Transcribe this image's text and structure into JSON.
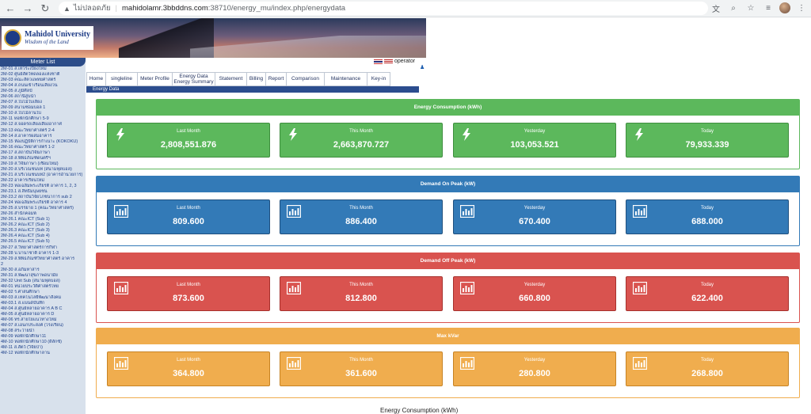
{
  "browser": {
    "insecure_label": "ไม่ปลอดภัย",
    "url_host": "mahidolamr.3bbddns.com",
    "url_path": ":38710/energy_mu/index.php/energydata"
  },
  "logo": {
    "line1": "Mahidol University",
    "line2": "Wisdom of the Land"
  },
  "user": {
    "name": "operator"
  },
  "sidebar": {
    "title": "Meter List",
    "items": [
      "2M-01 ส.เทวระเบียงใหม่",
      "2M-02 ศูนย์สัตว์ทดลองแห่งชาติ",
      "2M-03 คณะสัตวแพทยศาสตร์",
      "2M-04 ส.ถนนเข้าเรือนเลี้ยงวน",
      "2M-05 ส.ภูมิศิลป์",
      "2M-06 สถานีสูบน้ำ",
      "2M-07 ส.ใบไม้ใบเลี้ยง",
      "2M-09 สนามซ่อมบอล 1",
      "2M-10 ส.ใบไม้ลานใบ",
      "2M-11 หอพักนักศึกษา 5-9",
      "2M-12 ส.จอดรถเลี้ยงเสียงอากาศ",
      "2M-13 คณะวิทยาศาสตร์ 2-4",
      "2M-14 ส.อาคารผสมอาคาร",
      "2M-15 ห้องปฏิบัติการกำเนาะ (KOKOKU)",
      "2M-16 คณะวิทยาศาสตร์ 1-2",
      "2M-17 ส.สถาบันวิจัยภาษา",
      "2M-18 ส.พิพิธภัณฑ์ดนตรีฯ",
      "2M-19 ส.วิจัยภาษา (เชื่อมใหม่)",
      "2M-20 ส.บริเวณชนบท (สนามฟุตบอล)",
      "2M-21 ส.บริเวณชนบท2 (อาคารอำนวยการ)",
      "2M-22 อาคารเรียนใหม่",
      "2M-23 หอเฉลิมพระเกียรติ อาคาร 1, 2, 3",
      "2M-23.1 ส.สิทธิมนุษยชน",
      "2M-23.2 สถาบันวิจัยโภชนาการ sub 2",
      "2M-24 หอเฉลิมพระเกียรติ อาคาร 4",
      "2M-25 ส.บรรยาย 1 (คณะวิทยาศาสตร์)",
      "2M-26 สำนักคอมพ์",
      "2M-26.1 คณะICT (Sub 1)",
      "2M-26.2 คณะICT (Sub 2)",
      "2M-26.3 คณะICT (Sub 3)",
      "2M-26.4 คณะICT (Sub 4)",
      "2M-26.5 คณะICT (Sub 5)",
      "2M-27 ส.วิทยาศาสตร์การกีฬา",
      "2M-28 บ.บานาชาติ อาคาร 1-3",
      "2M-29 ส.พิพิธภัณฑ์วิทยาศาสตร์ อาคาร",
      "2",
      "2M-30 ส.อภิมหาสาร",
      "2M-31 ส.พัฒนาสุขภาพอนามัย",
      "2M-32 Unit Sub (สนามฟุตบอล)",
      "4M-01 หน่วยประวัติศาสตร์ไทย",
      "4M-02 ร.ศาสนศึกษา",
      "4M-03 ส.เทคโนโลยีพัฒนาสังคม",
      "4M-03.1 ส.แบนด์บันทึก",
      "4M-04 ส.ศูนย์หลายอาคาร A B C",
      "4M-05 ส.ศูนย์หลายอาคาร D",
      "4M-06 ทร.สายใยแนวทางใหม่",
      "4M-07 ส.เอนกประสงค์ (โรงเรียน)",
      "4M-08 สระว่ายน้ำ",
      "4M-09 หอพักนักศึกษา11",
      "4M-10 หอพักนักศึกษา10 (ดีลักซ์)",
      "4M-11 ส.สัตว์ (วิจัยป่า)",
      "4M-12 หอพักนักศึกษาลาน"
    ]
  },
  "menu": {
    "items": [
      "Home",
      "singleline",
      "Meter Profile",
      "Energy Data\nEnergy Summary",
      "Statement",
      "Billing",
      "Report",
      "Comparison",
      "Maintenance",
      "Key-in"
    ],
    "breadcrumb": "Energy Data"
  },
  "panels": [
    {
      "title": "Energy Consumption (kWh)",
      "theme": "green",
      "icon": "bolt-icon",
      "cards": [
        {
          "label": "Last Month",
          "value": "2,808,551.876"
        },
        {
          "label": "This Month",
          "value": "2,663,870.727"
        },
        {
          "label": "Yesterday",
          "value": "103,053.521"
        },
        {
          "label": "Today",
          "value": "79,933.339"
        }
      ]
    },
    {
      "title": "Demand On Peak (kW)",
      "theme": "blue",
      "icon": "bar-chart-icon",
      "cards": [
        {
          "label": "Last Month",
          "value": "809.600"
        },
        {
          "label": "This Month",
          "value": "886.400"
        },
        {
          "label": "Yesterday",
          "value": "670.400"
        },
        {
          "label": "Today",
          "value": "688.000"
        }
      ]
    },
    {
      "title": "Demand Off Peak (kW)",
      "theme": "red",
      "icon": "bar-chart-icon",
      "cards": [
        {
          "label": "Last Month",
          "value": "873.600"
        },
        {
          "label": "This Month",
          "value": "812.800"
        },
        {
          "label": "Yesterday",
          "value": "660.800"
        },
        {
          "label": "Today",
          "value": "622.400"
        }
      ]
    },
    {
      "title": "Max kVar",
      "theme": "orange",
      "icon": "bar-chart-icon",
      "cards": [
        {
          "label": "Last Month",
          "value": "364.800"
        },
        {
          "label": "This Month",
          "value": "361.600"
        },
        {
          "label": "Yesterday",
          "value": "280.800"
        },
        {
          "label": "Today",
          "value": "268.800"
        }
      ]
    }
  ],
  "section_title": "Energy Consumption (kWh)",
  "colors": {
    "green": "#5cb85c",
    "blue": "#337ab7",
    "red": "#d9534f",
    "orange": "#f0ad4e",
    "nav": "#2b4d8e"
  }
}
